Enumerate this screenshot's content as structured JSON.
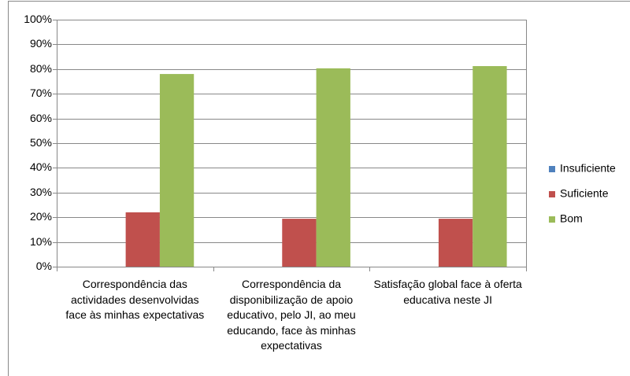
{
  "chart_data": {
    "type": "bar",
    "categories": [
      "Correspondência das actividades desenvolvidas face às minhas  expectativas",
      "Correspondência da disponibilização de apoio educativo, pelo JI, ao meu educando, face às minhas expectativas",
      "Satisfação global face à oferta educativa neste JI"
    ],
    "series": [
      {
        "name": "Insuficiente",
        "color": "#4f81bd",
        "values": [
          0,
          0,
          0
        ]
      },
      {
        "name": "Suficiente",
        "color": "#c0504d",
        "values": [
          22,
          19.4,
          19.4
        ]
      },
      {
        "name": "Bom",
        "color": "#9bbb59",
        "values": [
          78,
          80.3,
          81.2
        ]
      }
    ],
    "ylim": [
      0,
      100
    ],
    "yticks": [
      {
        "value": 0,
        "label": "0%"
      },
      {
        "value": 10,
        "label": "10%"
      },
      {
        "value": 20,
        "label": "20%"
      },
      {
        "value": 30,
        "label": "30%"
      },
      {
        "value": 40,
        "label": "40%"
      },
      {
        "value": 50,
        "label": "50%"
      },
      {
        "value": 60,
        "label": "60%"
      },
      {
        "value": 70,
        "label": "70%"
      },
      {
        "value": 80,
        "label": "80%"
      },
      {
        "value": 90,
        "label": "90%"
      },
      {
        "value": 100,
        "label": "100%"
      }
    ],
    "grid": true,
    "legend": "right"
  }
}
